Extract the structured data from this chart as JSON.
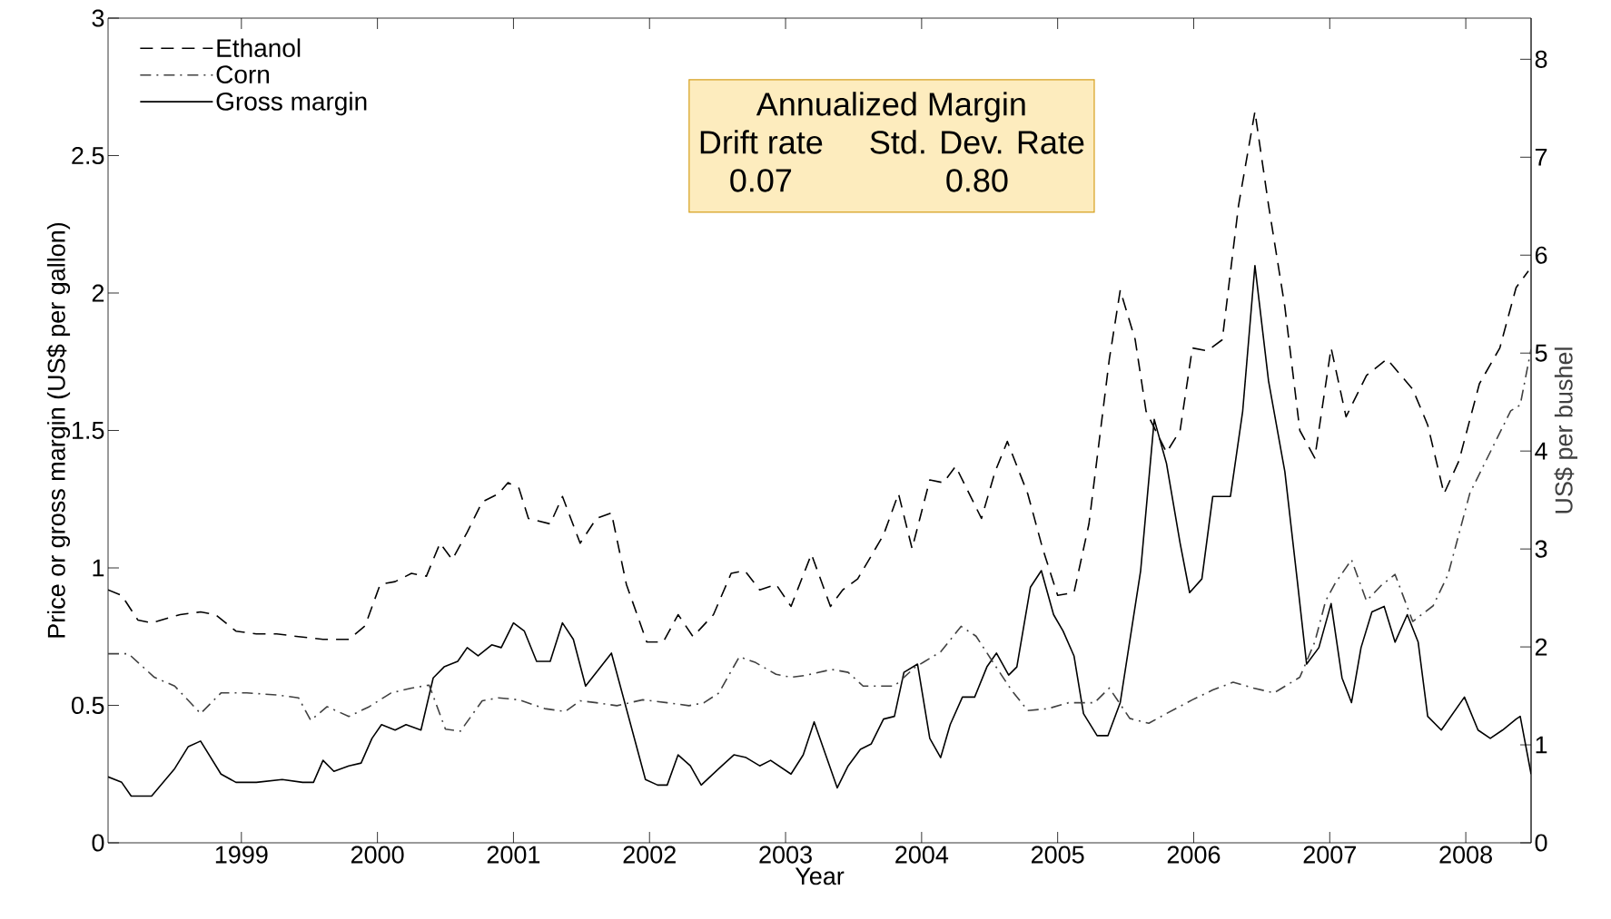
{
  "chart_data": {
    "type": "line",
    "xlabel": "Year",
    "ylabel": "Price or gross margin (US$ per gallon)",
    "y2label": "US$ per bushel",
    "xlim": [
      1998.02,
      2008.48
    ],
    "xticks": [
      1999,
      2000,
      2001,
      2002,
      2003,
      2004,
      2005,
      2006,
      2007,
      2008
    ],
    "ylim": [
      0,
      3
    ],
    "yticks": [
      0,
      0.5,
      1,
      1.5,
      2,
      2.5,
      3
    ],
    "y2lim": [
      0,
      8.42
    ],
    "y2ticks": [
      0,
      1,
      2,
      3,
      4,
      5,
      6,
      7,
      8
    ],
    "legend": "top left",
    "annotations": [
      "Annualized Margin",
      "Drift rate",
      "Std. Dev. Rate",
      "0.07",
      "0.80"
    ],
    "series": [
      {
        "name": "Ethanol",
        "color": "#000000",
        "line_style": "dashed",
        "x": [
          1998.02,
          1998.12,
          1998.24,
          1998.34,
          1998.55,
          1998.7,
          1998.81,
          1998.96,
          1999.11,
          1999.26,
          1999.42,
          1999.6,
          1999.79,
          1999.91,
          2000.02,
          2000.13,
          2000.25,
          2000.36,
          2000.46,
          2000.55,
          2000.66,
          2000.77,
          2000.89,
          2000.96,
          2001.04,
          2001.11,
          2001.27,
          2001.36,
          2001.49,
          2001.61,
          2001.72,
          2001.83,
          2001.98,
          2002.1,
          2002.21,
          2002.32,
          2002.47,
          2002.6,
          2002.7,
          2002.81,
          2002.93,
          2003.04,
          2003.19,
          2003.33,
          2003.42,
          2003.53,
          2003.72,
          2003.83,
          2003.93,
          2004.06,
          2004.16,
          2004.25,
          2004.44,
          2004.54,
          2004.63,
          2004.78,
          2004.89,
          2005.0,
          2005.12,
          2005.23,
          2005.38,
          2005.46,
          2005.57,
          2005.65,
          2005.8,
          2005.9,
          2005.99,
          2006.1,
          2006.21,
          2006.33,
          2006.45,
          2006.55,
          2006.67,
          2006.78,
          2006.89,
          2007.01,
          2007.12,
          2007.27,
          2007.42,
          2007.61,
          2007.72,
          2007.84,
          2007.95,
          2008.1,
          2008.25,
          2008.37,
          2008.46
        ],
        "values": [
          0.92,
          0.9,
          0.81,
          0.8,
          0.83,
          0.84,
          0.83,
          0.77,
          0.76,
          0.76,
          0.75,
          0.74,
          0.74,
          0.79,
          0.94,
          0.95,
          0.98,
          0.97,
          1.09,
          1.03,
          1.13,
          1.24,
          1.27,
          1.31,
          1.29,
          1.18,
          1.16,
          1.26,
          1.09,
          1.18,
          1.2,
          0.94,
          0.73,
          0.73,
          0.83,
          0.75,
          0.83,
          0.98,
          0.99,
          0.92,
          0.94,
          0.86,
          1.05,
          0.86,
          0.92,
          0.96,
          1.12,
          1.27,
          1.07,
          1.32,
          1.31,
          1.37,
          1.18,
          1.35,
          1.46,
          1.27,
          1.07,
          0.9,
          0.91,
          1.16,
          1.76,
          2.01,
          1.83,
          1.57,
          1.42,
          1.5,
          1.8,
          1.79,
          1.83,
          2.32,
          2.66,
          2.32,
          1.95,
          1.5,
          1.4,
          1.8,
          1.55,
          1.7,
          1.76,
          1.65,
          1.52,
          1.27,
          1.39,
          1.67,
          1.8,
          2.02,
          2.08
        ]
      },
      {
        "name": "Corn",
        "color": "#404040",
        "line_style": "dashdot",
        "axis": "y2",
        "x": [
          1998.02,
          1998.17,
          1998.36,
          1998.51,
          1998.7,
          1998.85,
          1999.04,
          1999.26,
          1999.42,
          1999.51,
          1999.63,
          1999.79,
          1999.94,
          2000.1,
          2000.25,
          2000.38,
          2000.5,
          2000.61,
          2000.77,
          2000.89,
          2001.04,
          2001.23,
          2001.38,
          2001.49,
          2001.61,
          2001.76,
          2001.95,
          2002.13,
          2002.29,
          2002.4,
          2002.51,
          2002.66,
          2002.78,
          2002.93,
          2003.04,
          2003.15,
          2003.34,
          2003.46,
          2003.57,
          2003.8,
          2003.95,
          2004.14,
          2004.29,
          2004.4,
          2004.55,
          2004.66,
          2004.78,
          2004.93,
          2005.08,
          2005.27,
          2005.38,
          2005.53,
          2005.67,
          2005.8,
          2005.99,
          2006.14,
          2006.29,
          2006.44,
          2006.59,
          2006.78,
          2006.89,
          2006.97,
          2007.04,
          2007.16,
          2007.27,
          2007.38,
          2007.48,
          2007.61,
          2007.76,
          2007.87,
          2008.03,
          2008.18,
          2008.33,
          2008.4,
          2008.48
        ],
        "values": [
          1.93,
          1.93,
          1.69,
          1.6,
          1.32,
          1.53,
          1.53,
          1.51,
          1.48,
          1.25,
          1.39,
          1.29,
          1.39,
          1.53,
          1.58,
          1.61,
          1.16,
          1.14,
          1.45,
          1.48,
          1.46,
          1.37,
          1.34,
          1.45,
          1.43,
          1.4,
          1.46,
          1.43,
          1.4,
          1.43,
          1.53,
          1.9,
          1.84,
          1.72,
          1.69,
          1.71,
          1.77,
          1.74,
          1.6,
          1.6,
          1.79,
          1.95,
          2.21,
          2.11,
          1.79,
          1.56,
          1.35,
          1.37,
          1.43,
          1.43,
          1.58,
          1.27,
          1.22,
          1.32,
          1.46,
          1.56,
          1.64,
          1.58,
          1.53,
          1.69,
          2.05,
          2.47,
          2.65,
          2.89,
          2.47,
          2.63,
          2.74,
          2.26,
          2.42,
          2.74,
          3.57,
          3.99,
          4.41,
          4.47,
          5.04
        ]
      },
      {
        "name": "Gross margin",
        "color": "#000000",
        "line_style": "solid",
        "x": [
          1998.02,
          1998.12,
          1998.19,
          1998.34,
          1998.51,
          1998.61,
          1998.7,
          1998.85,
          1998.96,
          1999.11,
          1999.3,
          1999.45,
          1999.53,
          1999.6,
          1999.68,
          1999.79,
          1999.88,
          1999.96,
          2000.03,
          2000.13,
          2000.21,
          2000.32,
          2000.41,
          2000.49,
          2000.59,
          2000.66,
          2000.74,
          2000.84,
          2000.91,
          2001.0,
          2001.08,
          2001.17,
          2001.27,
          2001.36,
          2001.44,
          2001.53,
          2001.72,
          2001.97,
          2002.06,
          2002.13,
          2002.21,
          2002.3,
          2002.38,
          2002.51,
          2002.62,
          2002.71,
          2002.81,
          2002.89,
          2003.04,
          2003.13,
          2003.21,
          2003.38,
          2003.46,
          2003.55,
          2003.63,
          2003.72,
          2003.8,
          2003.87,
          2003.97,
          2004.06,
          2004.14,
          2004.21,
          2004.3,
          2004.39,
          2004.48,
          2004.55,
          2004.64,
          2004.7,
          2004.8,
          2004.88,
          2004.97,
          2005.04,
          2005.12,
          2005.19,
          2005.29,
          2005.37,
          2005.46,
          2005.61,
          2005.71,
          2005.8,
          2005.9,
          2005.97,
          2006.06,
          2006.14,
          2006.27,
          2006.36,
          2006.45,
          2006.55,
          2006.67,
          2006.76,
          2006.83,
          2006.92,
          2007.01,
          2007.09,
          2007.16,
          2007.23,
          2007.31,
          2007.4,
          2007.48,
          2007.57,
          2007.65,
          2007.72,
          2007.82,
          2007.99,
          2008.09,
          2008.18,
          2008.27,
          2008.37,
          2008.4,
          2008.48
        ],
        "values": [
          0.24,
          0.22,
          0.17,
          0.17,
          0.27,
          0.35,
          0.37,
          0.25,
          0.22,
          0.22,
          0.23,
          0.22,
          0.22,
          0.3,
          0.26,
          0.28,
          0.29,
          0.38,
          0.43,
          0.41,
          0.43,
          0.41,
          0.6,
          0.64,
          0.66,
          0.71,
          0.68,
          0.72,
          0.71,
          0.8,
          0.77,
          0.66,
          0.66,
          0.8,
          0.74,
          0.57,
          0.69,
          0.23,
          0.21,
          0.21,
          0.32,
          0.28,
          0.21,
          0.27,
          0.32,
          0.31,
          0.28,
          0.3,
          0.25,
          0.32,
          0.44,
          0.2,
          0.28,
          0.34,
          0.36,
          0.45,
          0.46,
          0.62,
          0.65,
          0.38,
          0.31,
          0.43,
          0.53,
          0.53,
          0.64,
          0.69,
          0.61,
          0.64,
          0.93,
          0.99,
          0.83,
          0.77,
          0.68,
          0.47,
          0.39,
          0.39,
          0.51,
          0.99,
          1.54,
          1.38,
          1.09,
          0.91,
          0.96,
          1.26,
          1.26,
          1.57,
          2.1,
          1.68,
          1.35,
          0.96,
          0.65,
          0.71,
          0.87,
          0.6,
          0.51,
          0.71,
          0.84,
          0.86,
          0.73,
          0.83,
          0.73,
          0.46,
          0.41,
          0.53,
          0.41,
          0.38,
          0.41,
          0.45,
          0.46,
          0.25
        ]
      }
    ]
  }
}
